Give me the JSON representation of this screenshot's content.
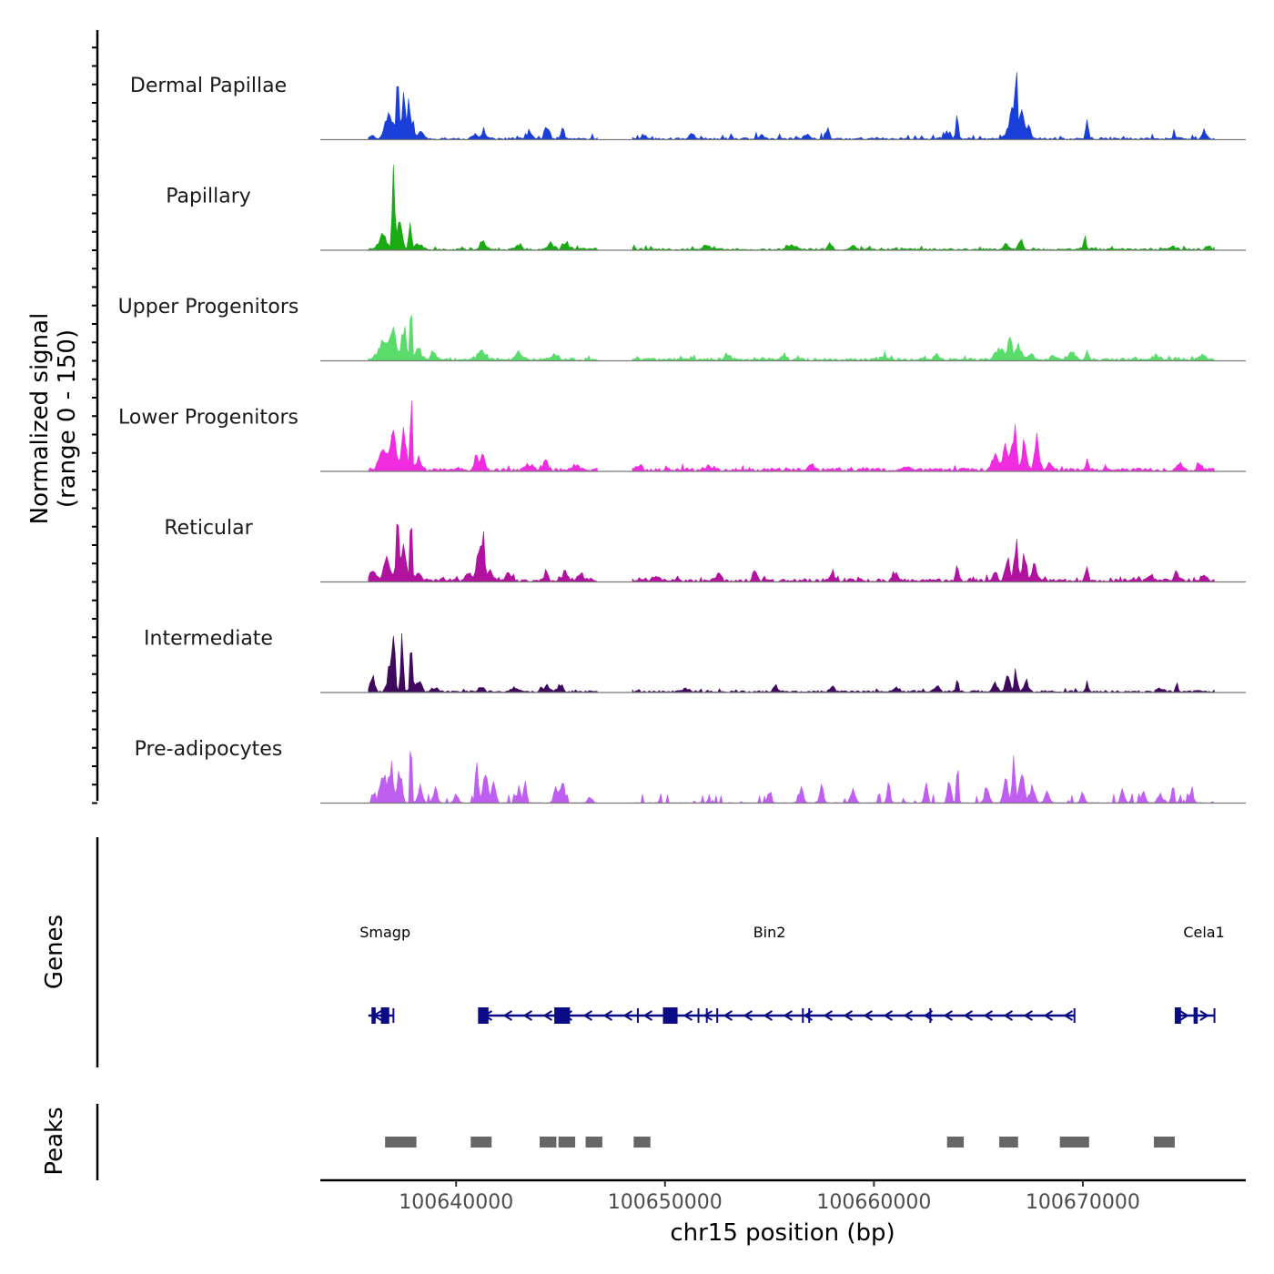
{
  "chart_data": {
    "type": "area",
    "title": "",
    "xlabel": "chr15 position (bp)",
    "ylabel_line1": "Normalized signal",
    "ylabel_line2": "(range 0 - 150)",
    "xlim": [
      100633500,
      100677800
    ],
    "ylim": [
      0,
      150
    ],
    "x_ticks": [
      {
        "value": 100640000,
        "label": "100640000"
      },
      {
        "value": 100650000,
        "label": "100650000"
      },
      {
        "value": 100660000,
        "label": "100660000"
      },
      {
        "value": 100670000,
        "label": "100670000"
      }
    ],
    "signal_start": 100635800,
    "signal_end": 100676300,
    "bin_bp": 80,
    "gaps": [
      [
        100646800,
        100648400
      ]
    ],
    "tracks": [
      {
        "name": "Dermal Papillae",
        "color": "#1a3fd8",
        "baseline": 3,
        "noise": 7,
        "peaks": [
          [
            100636000,
            7,
            150
          ],
          [
            100636800,
            55,
            250
          ],
          [
            100637200,
            95,
            90
          ],
          [
            100637500,
            72,
            140
          ],
          [
            100637750,
            82,
            45
          ],
          [
            100637900,
            35,
            120
          ],
          [
            100638300,
            12,
            200
          ],
          [
            100640900,
            9,
            160
          ],
          [
            100641300,
            12,
            140
          ],
          [
            100643500,
            10,
            180
          ],
          [
            100644300,
            18,
            140
          ],
          [
            100645100,
            16,
            120
          ],
          [
            100649000,
            9,
            150
          ],
          [
            100651300,
            8,
            200
          ],
          [
            100654600,
            6,
            250
          ],
          [
            100656800,
            9,
            200
          ],
          [
            100657800,
            20,
            100
          ],
          [
            100663500,
            14,
            200
          ],
          [
            100664000,
            35,
            90
          ],
          [
            100666600,
            45,
            250
          ],
          [
            100666800,
            100,
            100
          ],
          [
            100667100,
            55,
            120
          ],
          [
            100667400,
            25,
            150
          ],
          [
            100670200,
            38,
            80
          ],
          [
            100674400,
            10,
            120
          ],
          [
            100675800,
            12,
            150
          ]
        ]
      },
      {
        "name": "Papillary",
        "color": "#1aab12",
        "baseline": 3,
        "noise": 5,
        "peaks": [
          [
            100636500,
            22,
            250
          ],
          [
            100637000,
            130,
            80
          ],
          [
            100637300,
            55,
            150
          ],
          [
            100637800,
            45,
            100
          ],
          [
            100638200,
            12,
            200
          ],
          [
            100641300,
            12,
            200
          ],
          [
            100643000,
            8,
            200
          ],
          [
            100644500,
            14,
            150
          ],
          [
            100645300,
            12,
            200
          ],
          [
            100652000,
            7,
            250
          ],
          [
            100656100,
            7,
            250
          ],
          [
            100657900,
            12,
            150
          ],
          [
            100659000,
            9,
            150
          ],
          [
            100666300,
            12,
            150
          ],
          [
            100667000,
            18,
            150
          ],
          [
            100670100,
            22,
            80
          ],
          [
            100674300,
            7,
            200
          ],
          [
            100676000,
            8,
            150
          ]
        ]
      },
      {
        "name": "Upper Progenitors",
        "color": "#5adc6a",
        "baseline": 4,
        "noise": 5,
        "peaks": [
          [
            100636500,
            32,
            300
          ],
          [
            100637000,
            55,
            200
          ],
          [
            100637500,
            60,
            150
          ],
          [
            100637850,
            150,
            60
          ],
          [
            100638200,
            18,
            200
          ],
          [
            100638900,
            12,
            200
          ],
          [
            100641200,
            17,
            250
          ],
          [
            100643000,
            10,
            250
          ],
          [
            100644700,
            10,
            200
          ],
          [
            100653000,
            7,
            250
          ],
          [
            100655700,
            12,
            120
          ],
          [
            100660500,
            8,
            200
          ],
          [
            100663000,
            10,
            200
          ],
          [
            100666000,
            22,
            300
          ],
          [
            100666500,
            45,
            120
          ],
          [
            100666900,
            25,
            200
          ],
          [
            100667500,
            12,
            200
          ],
          [
            100668600,
            8,
            200
          ],
          [
            100669500,
            12,
            200
          ],
          [
            100670200,
            18,
            80
          ],
          [
            100673500,
            8,
            200
          ],
          [
            100675700,
            10,
            200
          ]
        ]
      },
      {
        "name": "Lower Progenitors",
        "color": "#f02ce0",
        "baseline": 5,
        "noise": 6,
        "peaks": [
          [
            100636500,
            45,
            250
          ],
          [
            100637000,
            75,
            200
          ],
          [
            100637500,
            65,
            150
          ],
          [
            100637850,
            150,
            55
          ],
          [
            100638200,
            20,
            200
          ],
          [
            100641000,
            22,
            200
          ],
          [
            100641300,
            32,
            100
          ],
          [
            100643500,
            12,
            200
          ],
          [
            100644300,
            22,
            120
          ],
          [
            100645700,
            10,
            200
          ],
          [
            100648800,
            8,
            200
          ],
          [
            100652000,
            8,
            250
          ],
          [
            100657000,
            10,
            200
          ],
          [
            100661500,
            7,
            250
          ],
          [
            100665800,
            28,
            200
          ],
          [
            100666300,
            55,
            150
          ],
          [
            100666700,
            75,
            150
          ],
          [
            100667200,
            55,
            150
          ],
          [
            100667800,
            50,
            150
          ],
          [
            100668400,
            12,
            200
          ],
          [
            100670200,
            18,
            80
          ],
          [
            100674600,
            12,
            150
          ],
          [
            100675600,
            12,
            150
          ]
        ]
      },
      {
        "name": "Reticular",
        "color": "#b1139f",
        "baseline": 5,
        "noise": 6,
        "peaks": [
          [
            100636000,
            18,
            200
          ],
          [
            100636700,
            55,
            200
          ],
          [
            100637200,
            90,
            120
          ],
          [
            100637500,
            65,
            150
          ],
          [
            100637850,
            150,
            60
          ],
          [
            100638200,
            15,
            200
          ],
          [
            100640600,
            15,
            200
          ],
          [
            100641100,
            55,
            150
          ],
          [
            100641300,
            75,
            100
          ],
          [
            100641600,
            25,
            150
          ],
          [
            100642500,
            12,
            200
          ],
          [
            100644300,
            18,
            120
          ],
          [
            100645200,
            22,
            120
          ],
          [
            100646000,
            12,
            200
          ],
          [
            100649500,
            8,
            200
          ],
          [
            100652500,
            10,
            200
          ],
          [
            100654300,
            18,
            120
          ],
          [
            100658000,
            12,
            200
          ],
          [
            100661000,
            15,
            150
          ],
          [
            100664000,
            30,
            100
          ],
          [
            100665800,
            18,
            150
          ],
          [
            100666400,
            40,
            150
          ],
          [
            100666800,
            70,
            120
          ],
          [
            100667200,
            45,
            150
          ],
          [
            100667700,
            30,
            150
          ],
          [
            100670200,
            30,
            80
          ],
          [
            100673200,
            10,
            200
          ],
          [
            100674500,
            15,
            150
          ],
          [
            100675800,
            10,
            200
          ]
        ]
      },
      {
        "name": "Intermediate",
        "color": "#3f0a5e",
        "baseline": 3,
        "noise": 4,
        "peaks": [
          [
            100636000,
            25,
            150
          ],
          [
            100636800,
            40,
            150
          ],
          [
            100637000,
            110,
            100
          ],
          [
            100637400,
            120,
            80
          ],
          [
            100637850,
            125,
            70
          ],
          [
            100638200,
            18,
            200
          ],
          [
            100639000,
            8,
            200
          ],
          [
            100641200,
            12,
            150
          ],
          [
            100642800,
            8,
            200
          ],
          [
            100644300,
            10,
            200
          ],
          [
            100645000,
            14,
            150
          ],
          [
            100651000,
            6,
            200
          ],
          [
            100655300,
            10,
            150
          ],
          [
            100658000,
            10,
            150
          ],
          [
            100661000,
            8,
            150
          ],
          [
            100663000,
            10,
            150
          ],
          [
            100664000,
            25,
            80
          ],
          [
            100665800,
            15,
            150
          ],
          [
            100666400,
            30,
            150
          ],
          [
            100666800,
            40,
            100
          ],
          [
            100667300,
            20,
            150
          ],
          [
            100670200,
            22,
            70
          ],
          [
            100673700,
            8,
            200
          ],
          [
            100674500,
            18,
            80
          ]
        ]
      },
      {
        "name": "Pre-adipocytes",
        "color": "#bf5ff2",
        "baseline": 1,
        "noise": 14,
        "peaks": [
          [
            100636500,
            60,
            200
          ],
          [
            100636900,
            70,
            150
          ],
          [
            100637300,
            55,
            150
          ],
          [
            100637850,
            150,
            60
          ],
          [
            100638300,
            30,
            150
          ],
          [
            100639000,
            25,
            150
          ],
          [
            100640000,
            15,
            150
          ],
          [
            100641000,
            80,
            100
          ],
          [
            100641400,
            60,
            150
          ],
          [
            100641800,
            50,
            120
          ],
          [
            100643000,
            35,
            100
          ],
          [
            100643300,
            35,
            100
          ],
          [
            100644800,
            30,
            150
          ],
          [
            100645100,
            40,
            120
          ],
          [
            100646400,
            10,
            150
          ],
          [
            100655000,
            25,
            120
          ],
          [
            100656500,
            28,
            150
          ],
          [
            100657500,
            32,
            120
          ],
          [
            100659000,
            28,
            150
          ],
          [
            100660700,
            35,
            100
          ],
          [
            100662500,
            50,
            100
          ],
          [
            100663600,
            35,
            120
          ],
          [
            100664000,
            75,
            70
          ],
          [
            100665400,
            30,
            150
          ],
          [
            100666300,
            40,
            150
          ],
          [
            100666700,
            70,
            100
          ],
          [
            100667100,
            45,
            150
          ],
          [
            100667600,
            30,
            150
          ],
          [
            100668300,
            20,
            150
          ],
          [
            100670000,
            20,
            120
          ],
          [
            100671900,
            28,
            120
          ],
          [
            100672900,
            20,
            150
          ],
          [
            100673700,
            20,
            150
          ],
          [
            100674300,
            28,
            100
          ],
          [
            100675200,
            20,
            150
          ]
        ]
      }
    ],
    "genes": [
      {
        "name": "Smagp",
        "start": 100635800,
        "end": 100637000,
        "label_x": 100636600,
        "exons": [
          [
            100635950,
            100636150
          ],
          [
            100636400,
            100636800
          ]
        ],
        "ticks": []
      },
      {
        "name": "Bin2",
        "start": 100641100,
        "end": 100669600,
        "label_x": 100655000,
        "exons": [
          [
            100641050,
            100641550
          ],
          [
            100644700,
            100645450
          ],
          [
            100649900,
            100650600
          ]
        ],
        "ticks": [
          100648700,
          100651600,
          100652000,
          100652500,
          100656600,
          100656900,
          100662700
        ]
      },
      {
        "name": "Cela1",
        "start": 100674400,
        "end": 100676300,
        "label_x": 100675800,
        "exons": [
          [
            100674400,
            100674700
          ],
          [
            100675300,
            100675500
          ]
        ],
        "ticks": []
      }
    ],
    "gene_color": "#0b0b85",
    "peaks_track": {
      "label": "Peaks",
      "color": "#666666",
      "regions": [
        [
          100636600,
          100638100
        ],
        [
          100640700,
          100641700
        ],
        [
          100644000,
          100644800
        ],
        [
          100644900,
          100645700
        ],
        [
          100646200,
          100647000
        ],
        [
          100648500,
          100649300
        ],
        [
          100663500,
          100664300
        ],
        [
          100666000,
          100666900
        ],
        [
          100668900,
          100670300
        ],
        [
          100673400,
          100674400
        ]
      ]
    },
    "genes_track_label": "Genes"
  }
}
